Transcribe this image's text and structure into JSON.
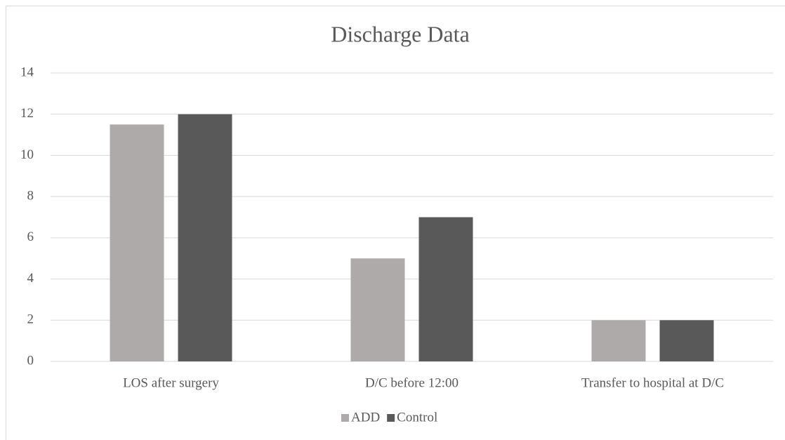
{
  "chart_data": {
    "type": "bar",
    "title": "Discharge Data",
    "categories": [
      "LOS after surgery",
      "D/C before 12:00",
      "Transfer to hospital at D/C"
    ],
    "series": [
      {
        "name": "ADD",
        "color": "#aeaaaa",
        "values": [
          11.5,
          5,
          2
        ]
      },
      {
        "name": "Control",
        "color": "#595959",
        "values": [
          12,
          7,
          2
        ]
      }
    ],
    "ylim": [
      0,
      14
    ],
    "yticks": [
      0,
      2,
      4,
      6,
      8,
      10,
      12,
      14
    ],
    "grid": true,
    "legend": "bottom"
  }
}
